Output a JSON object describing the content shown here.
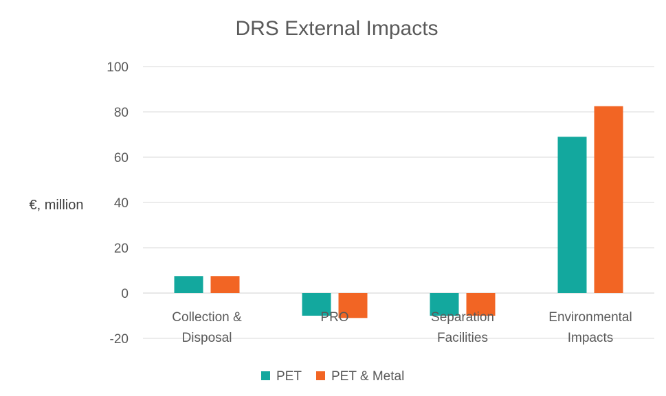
{
  "chart_data": {
    "type": "bar",
    "title": "DRS External Impacts",
    "ylabel": "€, million",
    "xlabel": "",
    "ylim": [
      -20,
      100
    ],
    "yticks": [
      100,
      80,
      60,
      40,
      20,
      0,
      -20
    ],
    "ytick_labels": [
      "100",
      "80",
      "60",
      "40",
      "20",
      "0",
      "-20"
    ],
    "categories": [
      [
        "Collection &",
        "Disposal"
      ],
      [
        "PRO"
      ],
      [
        "Separation",
        "Facilities"
      ],
      [
        "Environmental",
        "Impacts"
      ]
    ],
    "series": [
      {
        "name": "PET",
        "color": "#13A89E",
        "values": [
          7.5,
          -10,
          -10,
          69
        ]
      },
      {
        "name": "PET & Metal",
        "color": "#F26524",
        "values": [
          7.5,
          -11,
          -10,
          82.5
        ]
      }
    ],
    "grid": true,
    "legend_position": "bottom"
  }
}
